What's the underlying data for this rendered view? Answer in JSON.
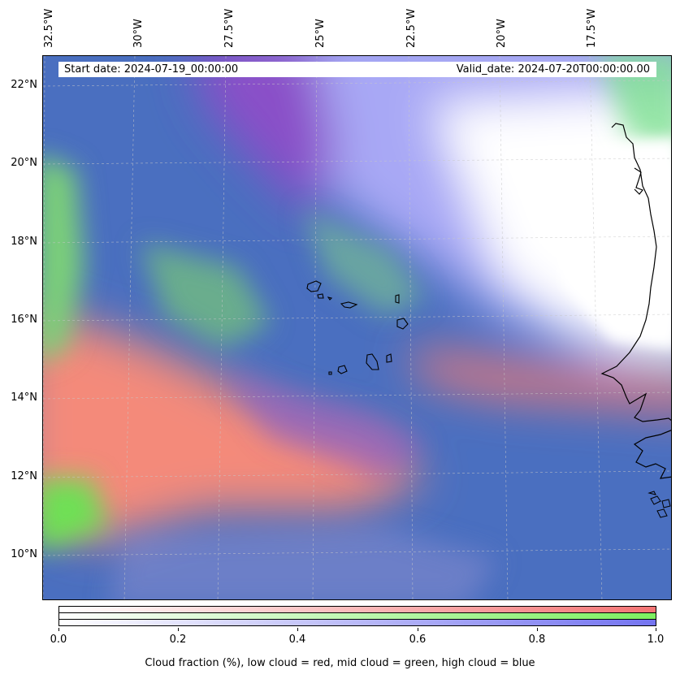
{
  "map": {
    "start_date": "Start date: 2024-07-19_00:00:00",
    "valid_date": "Valid_date: 2024-07-20T00:00:00.00",
    "lon_labels": [
      "32.5°W",
      "30°W",
      "27.5°W",
      "25°W",
      "22.5°W",
      "20°W",
      "17.5°W"
    ],
    "lat_labels": [
      "22°N",
      "20°N",
      "18°N",
      "16°N",
      "14°N",
      "12°N",
      "10°N"
    ],
    "colors": {
      "low_cloud": "#ff7070",
      "mid_cloud": "#7cf060",
      "high_cloud": "#7070ff",
      "base": "#4a6fc0",
      "clear": "#ffffff"
    }
  },
  "colorbar": {
    "ticks": [
      "0.0",
      "0.2",
      "0.4",
      "0.6",
      "0.8",
      "1.0"
    ],
    "label": "Cloud fraction (%), low cloud = red, mid cloud = green, high cloud = blue"
  }
}
